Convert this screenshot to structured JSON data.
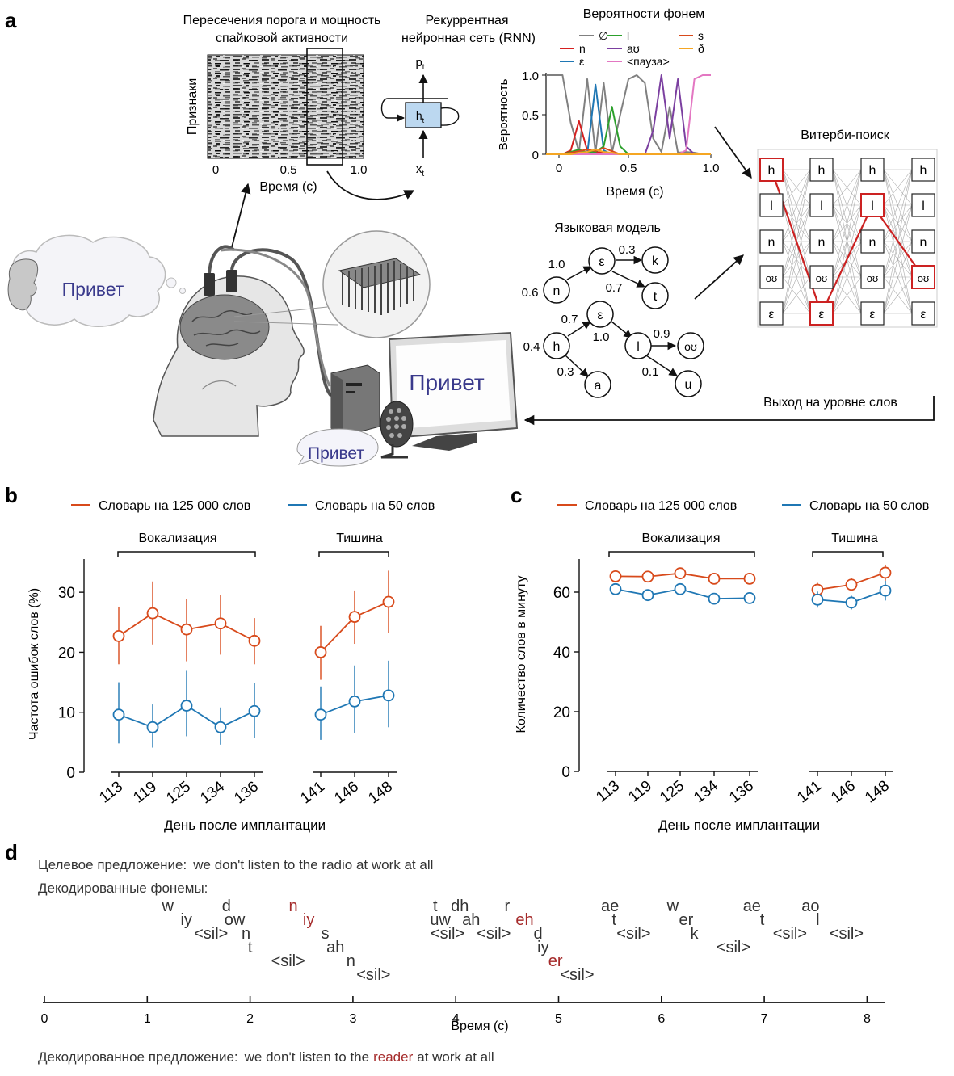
{
  "panel_a": {
    "letter": "a",
    "raster": {
      "title_line1": "Пересечения порога и мощность",
      "title_line2": "спайковой активности",
      "ylabel": "Признаки",
      "xlabel": "Время (с)",
      "ticks": [
        "0",
        "0.5",
        "1.0"
      ]
    },
    "rnn": {
      "title_line1": "Рекуррентная",
      "title_line2": "нейронная сеть (RNN)",
      "out_label": "p",
      "out_sub": "t",
      "hidden_label": "h",
      "hidden_sub": "t",
      "in_label": "x",
      "in_sub": "t"
    },
    "phoneme_probs": {
      "title": "Вероятности фонем",
      "legend": [
        {
          "label": "∅",
          "color": "#808080"
        },
        {
          "label": "n",
          "color": "#d62020"
        },
        {
          "label": "ε",
          "color": "#1f77b4"
        },
        {
          "label": "l",
          "color": "#2ca02c"
        },
        {
          "label": "aʊ",
          "color": "#7b3fa0"
        },
        {
          "label": "<пауза>",
          "color": "#e377c2"
        },
        {
          "label": "s",
          "color": "#d84a1b"
        },
        {
          "label": "ð",
          "color": "#f5a623"
        }
      ],
      "ylabel": "Вероятность",
      "xlabel": "Время (с)",
      "yticks": [
        "1.0",
        "0.5",
        "0"
      ],
      "xticks": [
        "0",
        "0.5",
        "1.0"
      ]
    },
    "viterbi": {
      "title": "Витерби-поиск",
      "states": [
        "h",
        "l",
        "n",
        "oʊ",
        "ε"
      ]
    },
    "language_model": {
      "title": "Языковая модель",
      "nodes": [
        "ε",
        "k",
        "n",
        "t",
        "ε",
        "h",
        "l",
        "oʊ",
        "a",
        "u"
      ],
      "edge_labels": [
        "0.3",
        "1.0",
        "0.6",
        "0.7",
        "0.7",
        "0.4",
        "1.0",
        "0.9",
        "0.3",
        "0.1"
      ]
    },
    "speech_bubble": "Привет",
    "monitor_text": "Привет",
    "speaker_bubble": "Привет",
    "word_output": "Выход на уровне слов"
  },
  "panel_b": {
    "letter": "b",
    "legend": [
      {
        "label": "Словарь на 125 000 слов",
        "color": "#d84a1b"
      },
      {
        "label": "Словарь на 50 слов",
        "color": "#1f77b4"
      }
    ],
    "group_labels": [
      "Вокализация",
      "Тишина"
    ],
    "ylabel": "Частота ошибок слов (%)",
    "xlabel": "День после имплантации"
  },
  "panel_c": {
    "letter": "c",
    "legend": [
      {
        "label": "Словарь на 125 000 слов",
        "color": "#d84a1b"
      },
      {
        "label": "Словарь на 50 слов",
        "color": "#1f77b4"
      }
    ],
    "group_labels": [
      "Вокализация",
      "Тишина"
    ],
    "ylabel": "Количество слов в минуту",
    "xlabel": "День после имплантации"
  },
  "chart_data": [
    {
      "type": "line",
      "panel": "b",
      "categories": [
        "113",
        "119",
        "125",
        "134",
        "136",
        "141",
        "146",
        "148"
      ],
      "groups": [
        {
          "name": "Вокализация",
          "categories": [
            "113",
            "119",
            "125",
            "134",
            "136"
          ]
        },
        {
          "name": "Тишина",
          "categories": [
            "141",
            "146",
            "148"
          ]
        }
      ],
      "series": [
        {
          "name": "Словарь на 125 000 слов",
          "color": "#d84a1b",
          "values": [
            22.7,
            26.5,
            23.8,
            24.8,
            21.9,
            20.0,
            25.9,
            28.4
          ],
          "err_low": [
            18.0,
            21.3,
            18.5,
            19.6,
            18.0,
            15.4,
            21.4,
            23.2
          ],
          "err_high": [
            27.6,
            31.8,
            28.9,
            29.5,
            25.7,
            24.4,
            30.3,
            33.6
          ]
        },
        {
          "name": "Словарь на 50 слов",
          "color": "#1f77b4",
          "values": [
            9.6,
            7.5,
            11.1,
            7.5,
            10.2,
            9.6,
            11.8,
            12.8
          ],
          "err_low": [
            4.8,
            4.1,
            6.0,
            4.6,
            5.7,
            5.4,
            6.6,
            7.5
          ],
          "err_high": [
            15.0,
            11.3,
            16.9,
            10.8,
            14.9,
            14.3,
            17.8,
            18.6
          ]
        }
      ],
      "ylabel": "Частота ошибок слов (%)",
      "xlabel": "День после имплантации",
      "ylim": [
        0,
        35
      ],
      "yticks": [
        0,
        10,
        20,
        30
      ],
      "grid": false,
      "legend_position": "top"
    },
    {
      "type": "line",
      "panel": "c",
      "categories": [
        "113",
        "119",
        "125",
        "134",
        "136",
        "141",
        "146",
        "148"
      ],
      "groups": [
        {
          "name": "Вокализация",
          "categories": [
            "113",
            "119",
            "125",
            "134",
            "136"
          ]
        },
        {
          "name": "Тишина",
          "categories": [
            "141",
            "146",
            "148"
          ]
        }
      ],
      "series": [
        {
          "name": "Словарь на 125 000 слов",
          "color": "#d84a1b",
          "values": [
            65.3,
            65.2,
            66.3,
            64.5,
            64.5,
            60.8,
            62.5,
            66.5
          ],
          "err_low": [
            64.0,
            63.8,
            64.8,
            63.2,
            63.3,
            58.5,
            60.3,
            63.8
          ],
          "err_high": [
            66.6,
            66.6,
            67.8,
            65.8,
            65.7,
            63.1,
            64.7,
            69.2
          ]
        },
        {
          "name": "Словарь на 50 слов",
          "color": "#1f77b4",
          "values": [
            61.0,
            59.0,
            61.0,
            57.8,
            58.0,
            57.5,
            56.5,
            60.5
          ],
          "err_low": [
            59.5,
            57.7,
            59.4,
            56.5,
            56.4,
            54.8,
            54.2,
            57.2
          ],
          "err_high": [
            62.5,
            60.3,
            62.6,
            59.1,
            59.6,
            60.2,
            58.8,
            63.8
          ]
        }
      ],
      "ylabel": "Количество слов в минуту",
      "xlabel": "День после имплантации",
      "ylim": [
        0,
        70
      ],
      "yticks": [
        0,
        20,
        40,
        60
      ],
      "grid": false,
      "legend_position": "top"
    },
    {
      "type": "line",
      "panel": "a-phoneme-probabilities",
      "x": [
        0.0,
        0.05,
        0.1,
        0.15,
        0.2,
        0.25,
        0.3,
        0.35,
        0.4,
        0.45,
        0.5,
        0.55,
        0.6,
        0.65,
        0.7,
        0.75,
        0.8,
        0.85,
        0.9,
        0.95,
        1.0
      ],
      "series": [
        {
          "name": "∅",
          "color": "#808080",
          "values": [
            1.0,
            1.0,
            1.0,
            0.4,
            0.03,
            0.95,
            0.02,
            0.9,
            0.02,
            0.5,
            0.95,
            1.0,
            0.9,
            0.2,
            0.03,
            0.6,
            0.02,
            0.03,
            0.02,
            0.0,
            0.0
          ]
        },
        {
          "name": "n",
          "color": "#d62020",
          "values": [
            0.0,
            0.0,
            0.0,
            0.05,
            0.42,
            0.05,
            0.03,
            0.02,
            0.0,
            0.0,
            0.0,
            0.0,
            0.0,
            0.0,
            0.0,
            0.0,
            0.0,
            0.0,
            0.0,
            0.0,
            0.0
          ]
        },
        {
          "name": "ε",
          "color": "#1f77b4",
          "values": [
            0.0,
            0.0,
            0.0,
            0.0,
            0.05,
            0.0,
            0.88,
            0.05,
            0.0,
            0.0,
            0.0,
            0.0,
            0.0,
            0.0,
            0.0,
            0.0,
            0.0,
            0.0,
            0.0,
            0.0,
            0.0
          ]
        },
        {
          "name": "l",
          "color": "#2ca02c",
          "values": [
            0.0,
            0.0,
            0.0,
            0.03,
            0.06,
            0.02,
            0.03,
            0.1,
            0.6,
            0.1,
            0.0,
            0.0,
            0.0,
            0.0,
            0.0,
            0.0,
            0.0,
            0.0,
            0.0,
            0.0,
            0.0
          ]
        },
        {
          "name": "aʊ",
          "color": "#7b3fa0",
          "values": [
            0.0,
            0.0,
            0.0,
            0.0,
            0.0,
            0.0,
            0.0,
            0.0,
            0.0,
            0.0,
            0.0,
            0.0,
            0.0,
            0.3,
            1.0,
            0.2,
            0.95,
            0.1,
            0.0,
            0.0,
            0.0
          ]
        },
        {
          "name": "<пауза>",
          "color": "#e377c2",
          "values": [
            0.0,
            0.0,
            0.0,
            0.0,
            0.0,
            0.0,
            0.0,
            0.0,
            0.0,
            0.0,
            0.0,
            0.0,
            0.0,
            0.0,
            0.0,
            0.0,
            0.0,
            0.05,
            0.95,
            1.0,
            1.0
          ]
        },
        {
          "name": "s",
          "color": "#d84a1b",
          "values": [
            0.0,
            0.0,
            0.0,
            0.02,
            0.04,
            0.06,
            0.04,
            0.08,
            0.04,
            0.0,
            0.0,
            0.0,
            0.0,
            0.0,
            0.0,
            0.0,
            0.0,
            0.0,
            0.0,
            0.0,
            0.0
          ]
        },
        {
          "name": "ð",
          "color": "#f5a623",
          "values": [
            0.0,
            0.0,
            0.0,
            0.0,
            0.02,
            0.03,
            0.06,
            0.03,
            0.02,
            0.0,
            0.0,
            0.0,
            0.0,
            0.0,
            0.0,
            0.0,
            0.0,
            0.0,
            0.0,
            0.0,
            0.0
          ]
        }
      ],
      "title": "Вероятности фонем",
      "ylabel": "Вероятность",
      "xlabel": "Время (с)",
      "xlim": [
        0,
        1.0
      ],
      "ylim": [
        0,
        1.0
      ]
    }
  ],
  "panel_d": {
    "letter": "d",
    "target_label": "Целевое предложение:",
    "target_sentence": "we don't listen to the radio at work at all",
    "decoded_phonemes_label": "Декодированные фонемы:",
    "phonemes": [
      {
        "t": "w",
        "x": 1.2,
        "row": 0,
        "err": false
      },
      {
        "t": "iy",
        "x": 1.38,
        "row": 1,
        "err": false
      },
      {
        "t": "d",
        "x": 1.77,
        "row": 0,
        "err": false
      },
      {
        "t": "ow",
        "x": 1.85,
        "row": 1,
        "err": false
      },
      {
        "t": "<sil>",
        "x": 1.62,
        "row": 2,
        "err": false
      },
      {
        "t": "n",
        "x": 1.96,
        "row": 2,
        "err": false
      },
      {
        "t": "t",
        "x": 2.0,
        "row": 3,
        "err": false
      },
      {
        "t": "n",
        "x": 2.42,
        "row": 0,
        "err": true
      },
      {
        "t": "iy",
        "x": 2.57,
        "row": 1,
        "err": true
      },
      {
        "t": "<sil>",
        "x": 2.37,
        "row": 4,
        "err": false
      },
      {
        "t": "s",
        "x": 2.73,
        "row": 2,
        "err": false
      },
      {
        "t": "ah",
        "x": 2.83,
        "row": 3,
        "err": false
      },
      {
        "t": "n",
        "x": 2.98,
        "row": 4,
        "err": false
      },
      {
        "t": "<sil>",
        "x": 3.2,
        "row": 5,
        "err": false
      },
      {
        "t": "t",
        "x": 3.8,
        "row": 0,
        "err": false
      },
      {
        "t": "uw",
        "x": 3.85,
        "row": 1,
        "err": false
      },
      {
        "t": "<sil>",
        "x": 3.92,
        "row": 2,
        "err": false
      },
      {
        "t": "dh",
        "x": 4.04,
        "row": 0,
        "err": false
      },
      {
        "t": "ah",
        "x": 4.15,
        "row": 1,
        "err": false
      },
      {
        "t": "<sil>",
        "x": 4.37,
        "row": 2,
        "err": false
      },
      {
        "t": "r",
        "x": 4.5,
        "row": 0,
        "err": false
      },
      {
        "t": "eh",
        "x": 4.67,
        "row": 1,
        "err": true
      },
      {
        "t": "d",
        "x": 4.8,
        "row": 2,
        "err": false
      },
      {
        "t": "iy",
        "x": 4.85,
        "row": 3,
        "err": false
      },
      {
        "t": "er",
        "x": 4.97,
        "row": 4,
        "err": true
      },
      {
        "t": "<sil>",
        "x": 5.18,
        "row": 5,
        "err": false
      },
      {
        "t": "ae",
        "x": 5.5,
        "row": 0,
        "err": false
      },
      {
        "t": "t",
        "x": 5.54,
        "row": 1,
        "err": false
      },
      {
        "t": "<sil>",
        "x": 5.73,
        "row": 2,
        "err": false
      },
      {
        "t": "w",
        "x": 6.11,
        "row": 0,
        "err": false
      },
      {
        "t": "er",
        "x": 6.24,
        "row": 1,
        "err": false
      },
      {
        "t": "k",
        "x": 6.32,
        "row": 2,
        "err": false
      },
      {
        "t": "<sil>",
        "x": 6.7,
        "row": 3,
        "err": false
      },
      {
        "t": "ae",
        "x": 6.88,
        "row": 0,
        "err": false
      },
      {
        "t": "t",
        "x": 6.98,
        "row": 1,
        "err": false
      },
      {
        "t": "<sil>",
        "x": 7.25,
        "row": 2,
        "err": false
      },
      {
        "t": "ao",
        "x": 7.45,
        "row": 0,
        "err": false
      },
      {
        "t": "l",
        "x": 7.52,
        "row": 1,
        "err": false
      },
      {
        "t": "<sil>",
        "x": 7.8,
        "row": 2,
        "err": false
      }
    ],
    "time_ticks": [
      "0",
      "1",
      "2",
      "3",
      "4",
      "5",
      "6",
      "7",
      "8"
    ],
    "time_label": "Время (с)",
    "decoded_label": "Декодированное предложение:",
    "decoded_part1": "we don't listen to the",
    "decoded_error": "reader",
    "decoded_part2": "at work at all",
    "error_color": "#a52a2a"
  }
}
